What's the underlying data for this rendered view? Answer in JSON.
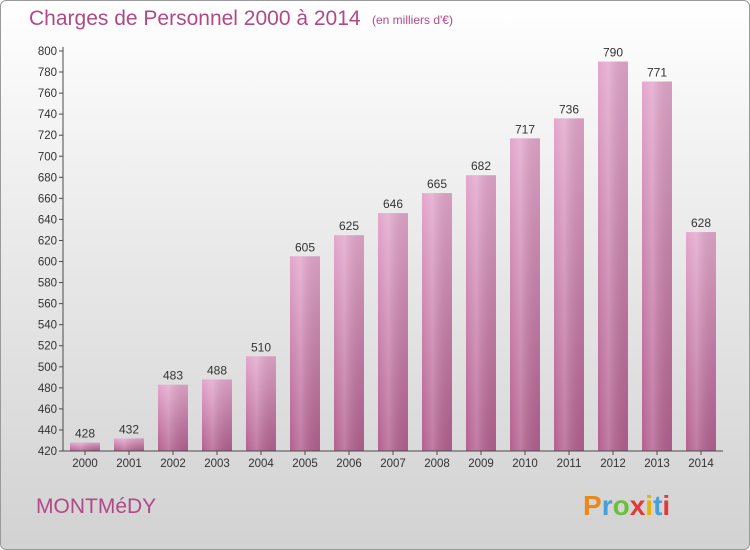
{
  "title": "Charges de Personnel 2000 à 2014",
  "unit": "(en milliers d'€)",
  "commune": "MONTMéDY",
  "brand": {
    "text": "Proxiti",
    "letter_colors": [
      "#e8891a",
      "#4a9fd8",
      "#6bbf3a",
      "#e23a3a",
      "#e8b400",
      "#4a9fd8",
      "#e23a3a"
    ]
  },
  "colors": {
    "title": "#b04a86",
    "bar_top": "#e3a7cc",
    "bar_bottom": "#b3608f",
    "axis": "#4a4a4a"
  },
  "chart_data": {
    "type": "bar",
    "title": "Charges de Personnel 2000 à 2014",
    "ylabel": "",
    "xlabel": "",
    "categories": [
      "2000",
      "2001",
      "2002",
      "2003",
      "2004",
      "2005",
      "2006",
      "2007",
      "2008",
      "2009",
      "2010",
      "2011",
      "2012",
      "2013",
      "2014"
    ],
    "values": [
      428,
      432,
      483,
      488,
      510,
      605,
      625,
      646,
      665,
      682,
      717,
      736,
      790,
      771,
      628
    ],
    "ylim": [
      420,
      800
    ],
    "yticks": [
      420,
      440,
      460,
      480,
      500,
      520,
      540,
      560,
      580,
      600,
      620,
      640,
      660,
      680,
      700,
      720,
      740,
      760,
      780,
      800
    ],
    "grid": false,
    "data_labels": true
  }
}
